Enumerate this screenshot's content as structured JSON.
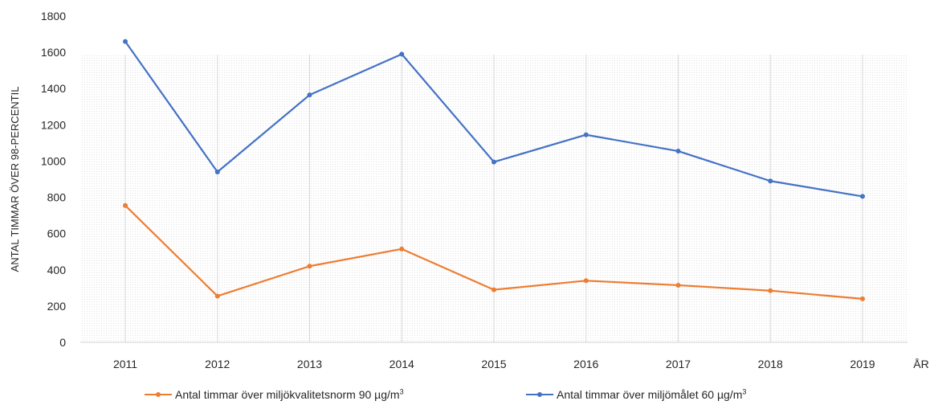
{
  "chart_data": {
    "type": "line",
    "title": "",
    "xlabel": "ÅR",
    "ylabel": "ANTAL TIMMAR ÖVER 98-PERCENTIL",
    "x": [
      "2011",
      "2012",
      "2013",
      "2014",
      "2015",
      "2016",
      "2017",
      "2018",
      "2019"
    ],
    "ylim": [
      0,
      1800
    ],
    "yticks": [
      "0",
      "200",
      "400",
      "600",
      "800",
      "1000",
      "1200",
      "1400",
      "1600",
      "1800"
    ],
    "grid": "vertical",
    "legend_position": "bottom",
    "series": [
      {
        "name": "Antal timmar över miljökvalitetsnorm 90 µg/m3",
        "name_text": "Antal timmar över miljökvalitetsnorm 90 µg/m",
        "name_sup": "3",
        "color": "#ED7D31",
        "values": [
          755,
          255,
          420,
          515,
          290,
          340,
          315,
          285,
          240
        ]
      },
      {
        "name": "Antal timmar över miljömålet 60 µg/m3",
        "name_text": "Antal timmar över miljömålet 60 µg/m",
        "name_sup": "3",
        "color": "#4472C4",
        "values": [
          1660,
          940,
          1365,
          1590,
          995,
          1145,
          1055,
          890,
          805
        ]
      }
    ]
  }
}
